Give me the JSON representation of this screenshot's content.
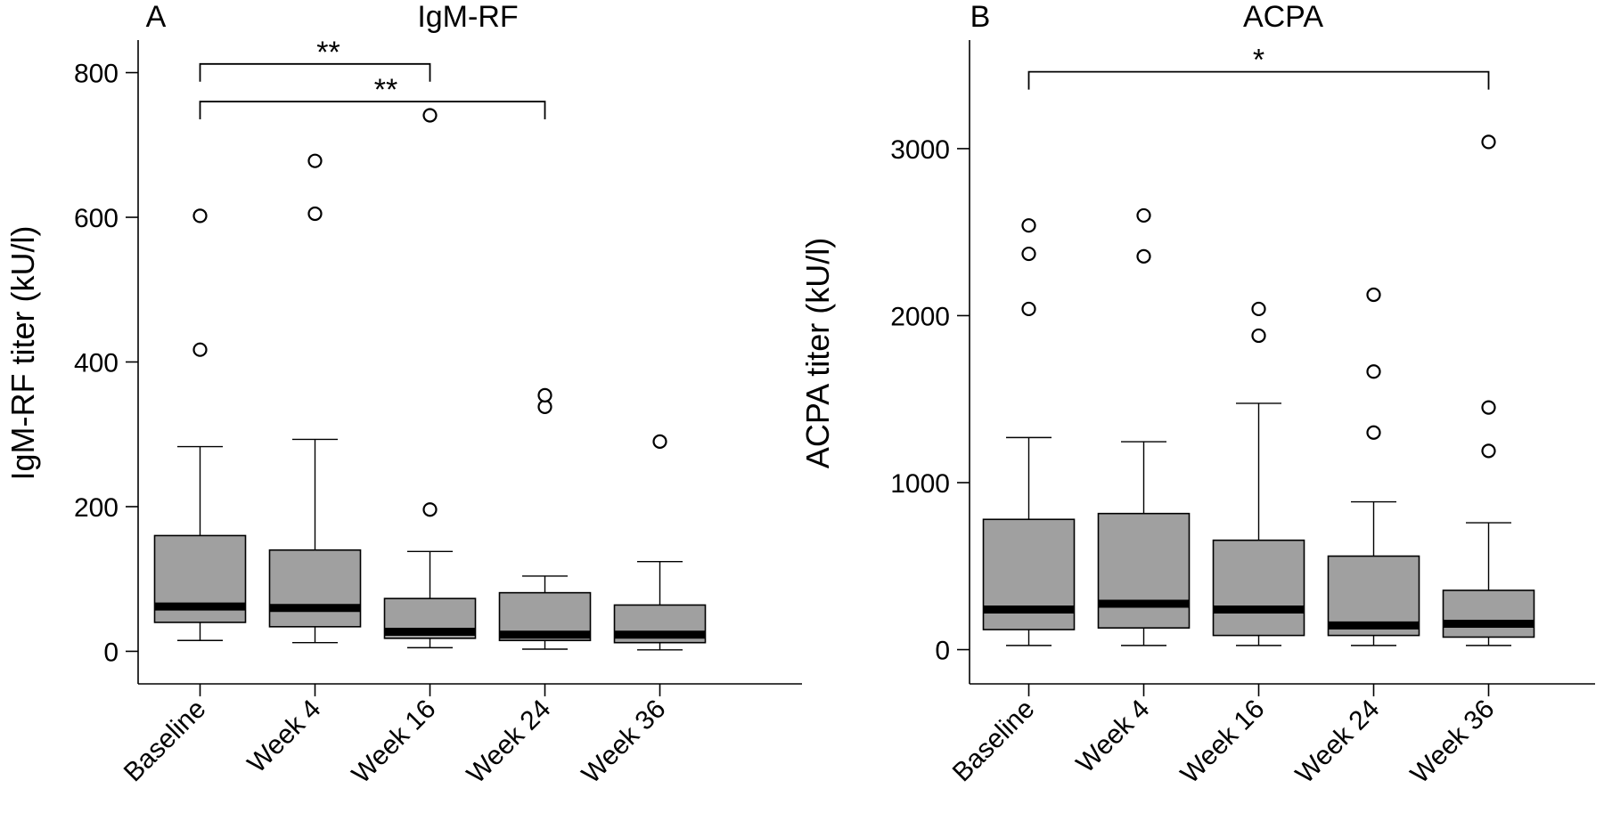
{
  "chart_data": [
    {
      "panel_label": "A",
      "type": "boxplot",
      "title": "IgM-RF",
      "xlabel": "",
      "ylabel": "IgM-RF titer (kU/l)",
      "categories": [
        "Baseline",
        "Week 4",
        "Week 16",
        "Week 24",
        "Week 36"
      ],
      "yticks": [
        0,
        200,
        400,
        600,
        800
      ],
      "ylim": [
        -45,
        845
      ],
      "boxes": [
        {
          "whisker_low": 15,
          "q1": 40,
          "median": 62,
          "q3": 160,
          "whisker_high": 283,
          "outliers": [
            417,
            602
          ]
        },
        {
          "whisker_low": 12,
          "q1": 34,
          "median": 60,
          "q3": 140,
          "whisker_high": 293,
          "outliers": [
            605,
            678
          ]
        },
        {
          "whisker_low": 5,
          "q1": 18,
          "median": 27,
          "q3": 73,
          "whisker_high": 138,
          "outliers": [
            196,
            741
          ]
        },
        {
          "whisker_low": 3,
          "q1": 15,
          "median": 23,
          "q3": 81,
          "whisker_high": 104,
          "outliers": [
            338,
            354
          ]
        },
        {
          "whisker_low": 2,
          "q1": 12,
          "median": 23,
          "q3": 64,
          "whisker_high": 124,
          "outliers": [
            290
          ]
        }
      ],
      "significance": [
        {
          "from": 0,
          "to": 2,
          "label": "**",
          "y": 812
        },
        {
          "from": 0,
          "to": 3,
          "label": "**",
          "y": 760
        }
      ]
    },
    {
      "panel_label": "B",
      "type": "boxplot",
      "title": "ACPA",
      "xlabel": "",
      "ylabel": "ACPA titer (kU/l)",
      "categories": [
        "Baseline",
        "Week 4",
        "Week 16",
        "Week 24",
        "Week 36"
      ],
      "yticks": [
        0,
        1000,
        2000,
        3000
      ],
      "ylim": [
        -205,
        3650
      ],
      "boxes": [
        {
          "whisker_low": 25,
          "q1": 120,
          "median": 240,
          "q3": 780,
          "whisker_high": 1270,
          "outliers": [
            2040,
            2370,
            2540
          ]
        },
        {
          "whisker_low": 25,
          "q1": 130,
          "median": 275,
          "q3": 815,
          "whisker_high": 1245,
          "outliers": [
            2355,
            2600
          ]
        },
        {
          "whisker_low": 25,
          "q1": 85,
          "median": 240,
          "q3": 655,
          "whisker_high": 1475,
          "outliers": [
            1880,
            2040
          ]
        },
        {
          "whisker_low": 25,
          "q1": 85,
          "median": 145,
          "q3": 560,
          "whisker_high": 885,
          "outliers": [
            1300,
            1665,
            2125
          ]
        },
        {
          "whisker_low": 25,
          "q1": 75,
          "median": 155,
          "q3": 355,
          "whisker_high": 760,
          "outliers": [
            1190,
            1450,
            3040
          ]
        }
      ],
      "significance": [
        {
          "from": 0,
          "to": 4,
          "label": "*",
          "y": 3460
        }
      ]
    }
  ]
}
